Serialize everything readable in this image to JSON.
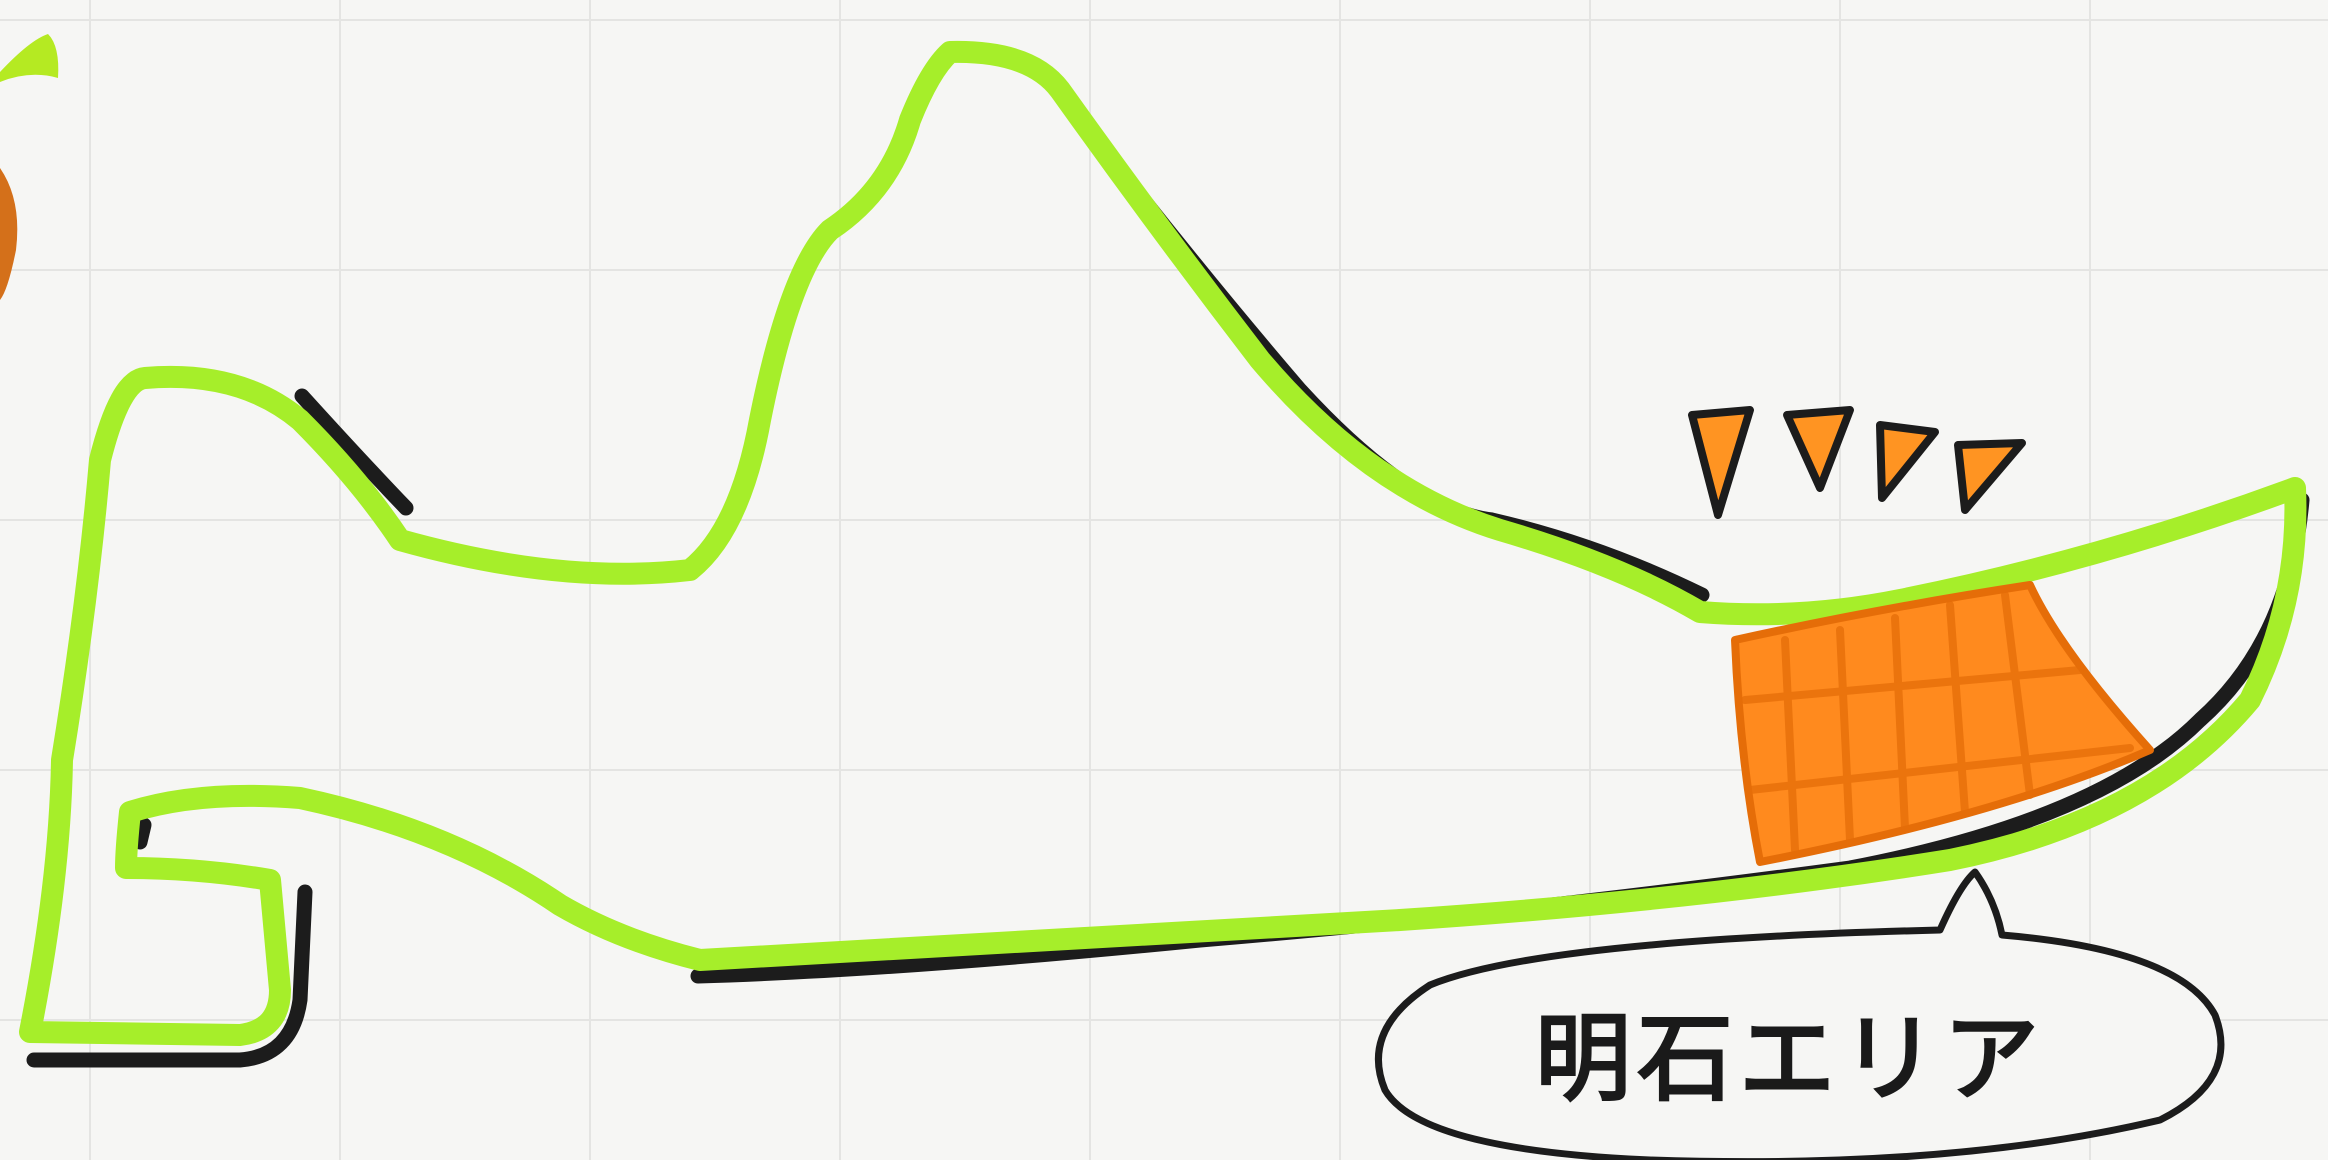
{
  "drawing": {
    "callout_label": "明石エリア"
  },
  "colors": {
    "paper": "#f6f6f4",
    "grid": "#e4e4e2",
    "outline_green": "#a6ee2a",
    "shadow_black": "#1c1c1c",
    "area_orange": "#ff8a1e",
    "area_orange_dark": "#e56d08"
  }
}
